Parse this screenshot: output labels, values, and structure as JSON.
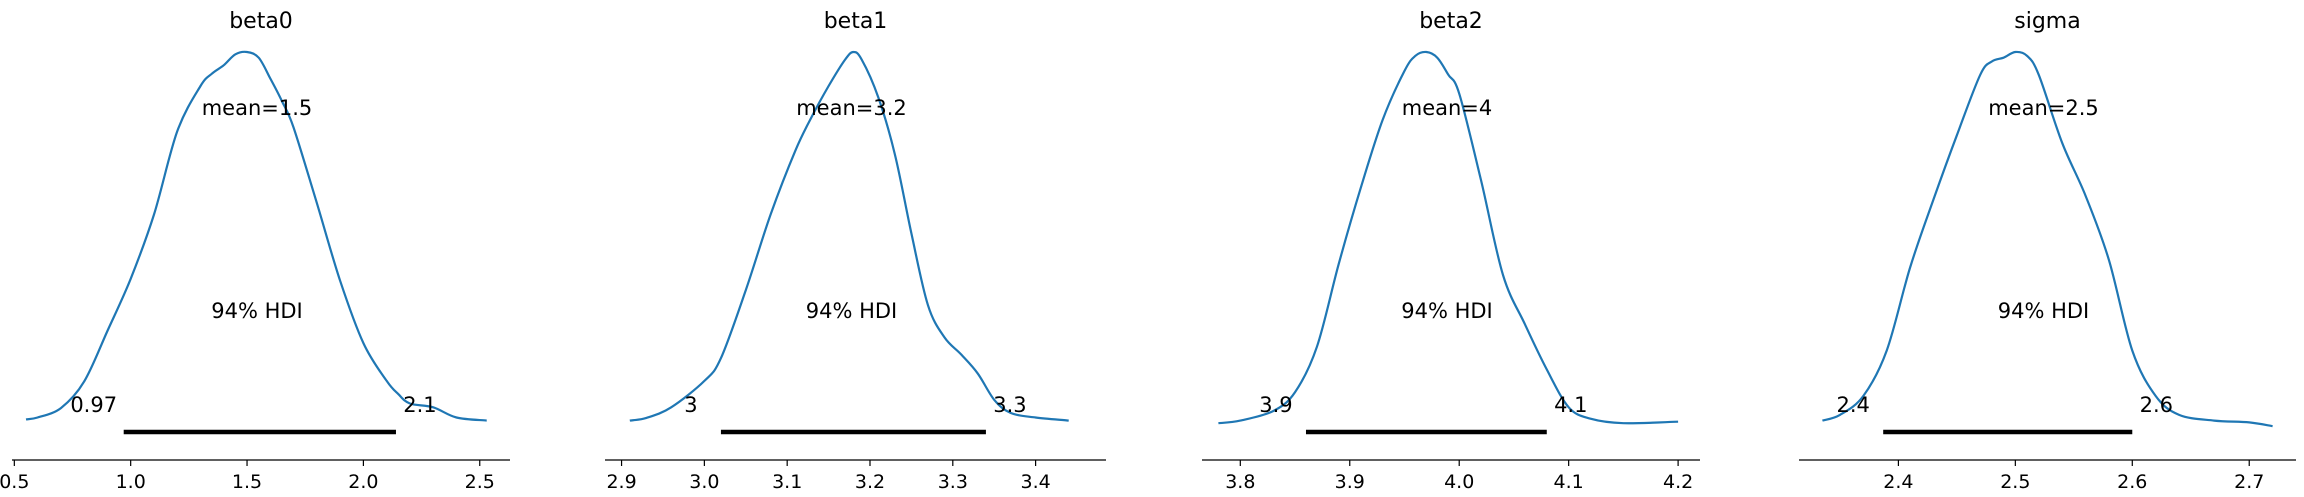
{
  "chart_data": [
    {
      "type": "line",
      "title": "beta0",
      "mean_label": "mean=1.5",
      "hdi_label": "94% HDI",
      "hdi_low_label": "0.97",
      "hdi_high_label": "2.1",
      "hdi": [
        0.97,
        2.14
      ],
      "xlim": [
        0.49,
        2.63
      ],
      "xticks": [
        0.5,
        1.0,
        1.5,
        2.0,
        2.5
      ],
      "xtick_labels": [
        "0.5",
        "1.0",
        "1.5",
        "2.0",
        "2.5"
      ],
      "density": {
        "x": [
          0.55,
          0.6,
          0.7,
          0.8,
          0.9,
          1.0,
          1.1,
          1.2,
          1.3,
          1.35,
          1.4,
          1.45,
          1.5,
          1.55,
          1.6,
          1.65,
          1.7,
          1.8,
          1.9,
          2.0,
          2.1,
          2.15,
          2.2,
          2.3,
          2.4,
          2.53
        ],
        "y": [
          0.028,
          0.033,
          0.058,
          0.128,
          0.262,
          0.4,
          0.57,
          0.79,
          0.91,
          0.943,
          0.965,
          0.994,
          1.0,
          0.985,
          0.93,
          0.87,
          0.8,
          0.6,
          0.395,
          0.23,
          0.13,
          0.095,
          0.07,
          0.06,
          0.033,
          0.025
        ]
      }
    },
    {
      "type": "line",
      "title": "beta1",
      "mean_label": "mean=3.2",
      "hdi_label": "94% HDI",
      "hdi_low_label": "3",
      "hdi_high_label": "3.3",
      "hdi": [
        3.02,
        3.34
      ],
      "xlim": [
        2.88,
        3.485
      ],
      "xticks": [
        2.9,
        3.0,
        3.1,
        3.2,
        3.3,
        3.4
      ],
      "xtick_labels": [
        "2.9",
        "3.0",
        "3.1",
        "3.2",
        "3.3",
        "3.4"
      ],
      "density": {
        "x": [
          2.91,
          2.93,
          2.96,
          3.0,
          3.02,
          3.05,
          3.08,
          3.11,
          3.13,
          3.15,
          3.17,
          3.18,
          3.19,
          3.21,
          3.23,
          3.25,
          3.27,
          3.29,
          3.31,
          3.33,
          3.35,
          3.37,
          3.4,
          3.44
        ],
        "y": [
          0.025,
          0.032,
          0.06,
          0.13,
          0.19,
          0.37,
          0.57,
          0.74,
          0.83,
          0.91,
          0.98,
          1.0,
          0.98,
          0.88,
          0.73,
          0.52,
          0.33,
          0.245,
          0.2,
          0.15,
          0.08,
          0.045,
          0.033,
          0.025
        ]
      }
    },
    {
      "type": "line",
      "title": "beta2",
      "mean_label": "mean=4",
      "hdi_label": "94% HDI",
      "hdi_low_label": "3.9",
      "hdi_high_label": "4.1",
      "hdi": [
        3.86,
        4.08
      ],
      "xlim": [
        3.765,
        4.22
      ],
      "xticks": [
        3.8,
        3.9,
        4.0,
        4.1,
        4.2
      ],
      "xtick_labels": [
        "3.8",
        "3.9",
        "4.0",
        "4.1",
        "4.2"
      ],
      "density": {
        "x": [
          3.78,
          3.8,
          3.83,
          3.85,
          3.87,
          3.89,
          3.91,
          3.93,
          3.95,
          3.96,
          3.97,
          3.98,
          3.99,
          4.0,
          4.02,
          4.04,
          4.06,
          4.08,
          4.1,
          4.12,
          4.15,
          4.2
        ],
        "y": [
          0.018,
          0.025,
          0.05,
          0.1,
          0.22,
          0.44,
          0.64,
          0.82,
          0.95,
          0.99,
          1.0,
          0.985,
          0.94,
          0.89,
          0.66,
          0.41,
          0.28,
          0.16,
          0.06,
          0.03,
          0.018,
          0.022
        ]
      }
    },
    {
      "type": "line",
      "title": "sigma",
      "mean_label": "mean=2.5",
      "hdi_label": "94% HDI",
      "hdi_low_label": "2.4",
      "hdi_high_label": "2.6",
      "hdi": [
        2.387,
        2.6
      ],
      "xlim": [
        2.315,
        2.74
      ],
      "xticks": [
        2.4,
        2.5,
        2.6,
        2.7
      ],
      "xtick_labels": [
        "2.4",
        "2.5",
        "2.6",
        "2.7"
      ],
      "density": {
        "x": [
          2.335,
          2.35,
          2.37,
          2.39,
          2.41,
          2.43,
          2.45,
          2.47,
          2.48,
          2.49,
          2.5,
          2.51,
          2.52,
          2.54,
          2.56,
          2.58,
          2.6,
          2.62,
          2.64,
          2.67,
          2.7,
          2.72
        ],
        "y": [
          0.025,
          0.04,
          0.09,
          0.21,
          0.43,
          0.61,
          0.78,
          0.94,
          0.975,
          0.985,
          1.0,
          0.99,
          0.94,
          0.76,
          0.62,
          0.45,
          0.21,
          0.09,
          0.04,
          0.025,
          0.02,
          0.01
        ]
      }
    }
  ]
}
